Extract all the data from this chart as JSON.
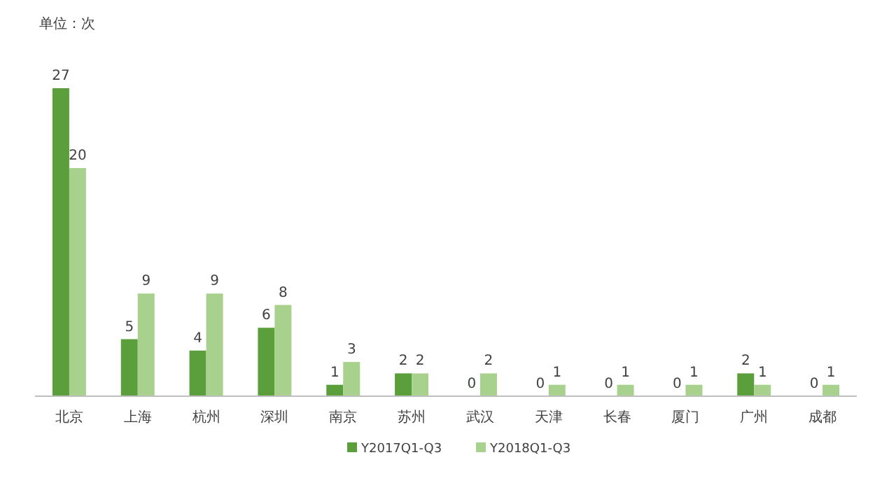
{
  "chart_data": {
    "type": "bar",
    "categories": [
      "北京",
      "上海",
      "杭州",
      "深圳",
      "南京",
      "苏州",
      "武汉",
      "天津",
      "长春",
      "厦门",
      "广州",
      "成都"
    ],
    "series": [
      {
        "name": "Y2017Q1-Q3",
        "color": "#5b9e3c",
        "values": [
          27,
          5,
          4,
          6,
          1,
          2,
          0,
          0,
          0,
          0,
          2,
          0
        ]
      },
      {
        "name": "Y2018Q1-Q3",
        "color": "#a9d18e",
        "values": [
          20,
          9,
          9,
          8,
          3,
          2,
          2,
          1,
          1,
          1,
          1,
          1
        ]
      }
    ],
    "data_labels": true,
    "legend": "bottom",
    "annotations": [
      "单位：次"
    ]
  }
}
